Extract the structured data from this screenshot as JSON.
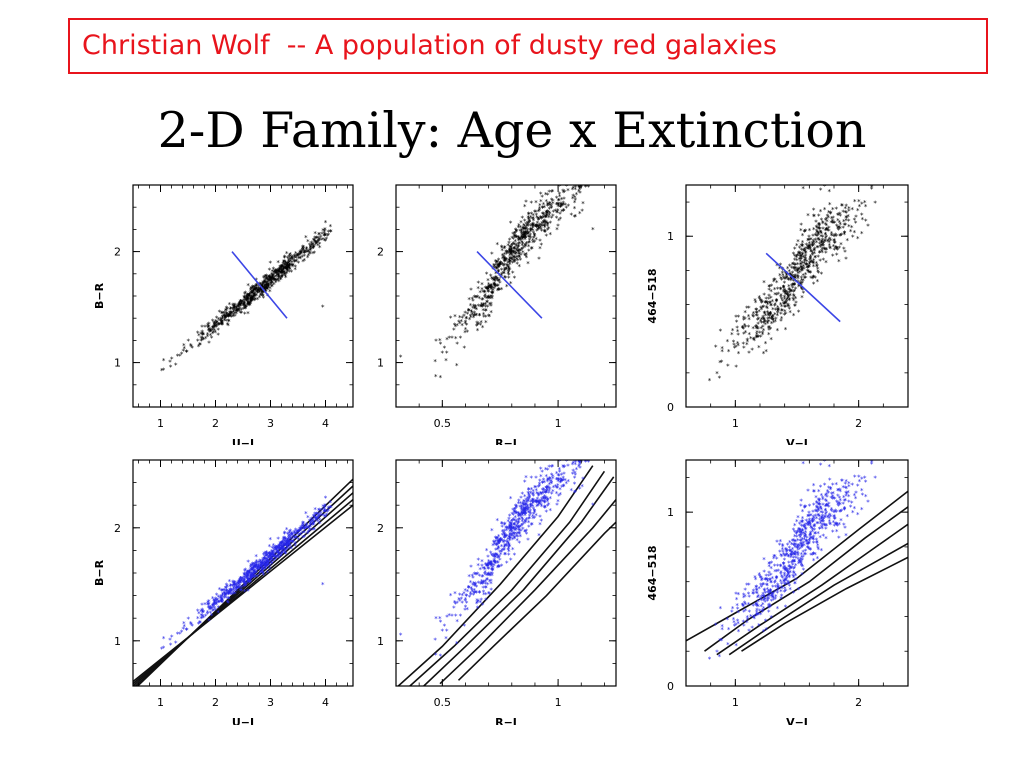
{
  "header": {
    "text": "Christian Wolf  -- A population of dusty red galaxies"
  },
  "slide": {
    "title": "2-D Family: Age x Extinction"
  },
  "colors": {
    "header_red": "#e8141c",
    "line_blue": "#3c46e6",
    "points_black": "#000000",
    "points_blue": "#2626e8"
  },
  "chart_data": [
    {
      "type": "scatter",
      "id": "UI-BR-black",
      "xlabel": "U−I",
      "ylabel": "B−R",
      "xlim": [
        0.5,
        4.5
      ],
      "ylim": [
        0.6,
        2.6
      ],
      "xticks": [
        1,
        2,
        3,
        4
      ],
      "yticks": [
        1,
        2
      ],
      "point_color": "#000000",
      "points": {
        "n": 700,
        "x_range": [
          1.0,
          4.1
        ],
        "relation": "y = 0.51 + 0.41*x",
        "x_center": 2.9,
        "x_spread": 0.65,
        "y_scatter": 0.04
      },
      "lines": [
        {
          "color": "#3c46e6",
          "points": [
            [
              2.3,
              2.0
            ],
            [
              3.3,
              1.4
            ]
          ]
        }
      ],
      "outliers": [
        [
          3.95,
          1.5
        ]
      ]
    },
    {
      "type": "scatter",
      "id": "RI-BR-black",
      "xlabel": "R−I",
      "ylabel": "B−R",
      "xlim": [
        0.3,
        1.25
      ],
      "ylim": [
        0.6,
        2.6
      ],
      "xticks": [
        0.5,
        1
      ],
      "yticks": [
        1,
        2
      ],
      "point_color": "#000000",
      "points": {
        "n": 700,
        "x_range": [
          0.38,
          1.2
        ],
        "relation": "y = 0.0 + 2.3*x",
        "x_center": 0.82,
        "x_spread": 0.14,
        "y_scatter": 0.1
      },
      "lines": [
        {
          "color": "#3c46e6",
          "points": [
            [
              0.65,
              2.0
            ],
            [
              0.93,
              1.4
            ]
          ]
        }
      ],
      "outliers": [
        [
          0.32,
          1.05
        ],
        [
          1.15,
          2.2
        ]
      ]
    },
    {
      "type": "scatter",
      "id": "VI-464-black",
      "xlabel": "V−I",
      "ylabel": "464−518",
      "xlim": [
        0.6,
        2.4
      ],
      "ylim": [
        0.0,
        1.3
      ],
      "xticks": [
        1,
        2
      ],
      "yticks": [
        0,
        1
      ],
      "point_color": "#000000",
      "points": {
        "n": 700,
        "x_range": [
          0.75,
          2.15
        ],
        "relation": "y = -0.35 + 0.72*x",
        "x_center": 1.5,
        "x_spread": 0.26,
        "y_scatter": 0.09
      },
      "lines": [
        {
          "color": "#3c46e6",
          "points": [
            [
              1.25,
              0.9
            ],
            [
              1.85,
              0.5
            ]
          ]
        }
      ],
      "outliers": [
        [
          1.55,
          1.28
        ]
      ]
    },
    {
      "type": "scatter",
      "id": "UI-BR-blue",
      "xlabel": "U−I",
      "ylabel": "B−R",
      "xlim": [
        0.5,
        4.5
      ],
      "ylim": [
        0.6,
        2.6
      ],
      "xticks": [
        1,
        2,
        3,
        4
      ],
      "yticks": [
        1,
        2
      ],
      "point_color": "#2626e8",
      "points": {
        "n": 700,
        "x_range": [
          1.0,
          4.1
        ],
        "relation": "y = 0.51 + 0.41*x",
        "x_center": 2.9,
        "x_spread": 0.65,
        "y_scatter": 0.04
      },
      "tracks": [
        [
          [
            0.5,
            0.56
          ],
          [
            4.5,
            2.43
          ]
        ],
        [
          [
            0.5,
            0.58
          ],
          [
            4.5,
            2.37
          ]
        ],
        [
          [
            0.5,
            0.6
          ],
          [
            4.5,
            2.31
          ]
        ],
        [
          [
            0.5,
            0.62
          ],
          [
            4.5,
            2.25
          ]
        ],
        [
          [
            0.5,
            0.64
          ],
          [
            4.5,
            2.2
          ]
        ]
      ],
      "outliers": [
        [
          3.95,
          1.5
        ]
      ]
    },
    {
      "type": "scatter",
      "id": "RI-BR-blue",
      "xlabel": "R−I",
      "ylabel": "B−R",
      "xlim": [
        0.3,
        1.25
      ],
      "ylim": [
        0.6,
        2.6
      ],
      "xticks": [
        0.5,
        1
      ],
      "yticks": [
        1,
        2
      ],
      "point_color": "#2626e8",
      "points": {
        "n": 700,
        "x_range": [
          0.38,
          1.2
        ],
        "relation": "y = 0.0 + 2.3*x",
        "x_center": 0.82,
        "x_spread": 0.14,
        "y_scatter": 0.1
      },
      "tracks": [
        [
          [
            0.31,
            0.6
          ],
          [
            0.5,
            0.95
          ],
          [
            0.75,
            1.5
          ],
          [
            1.0,
            2.1
          ],
          [
            1.15,
            2.55
          ]
        ],
        [
          [
            0.36,
            0.6
          ],
          [
            0.55,
            0.95
          ],
          [
            0.8,
            1.45
          ],
          [
            1.05,
            2.05
          ],
          [
            1.2,
            2.5
          ]
        ],
        [
          [
            0.42,
            0.6
          ],
          [
            0.6,
            0.95
          ],
          [
            0.85,
            1.45
          ],
          [
            1.1,
            2.05
          ],
          [
            1.24,
            2.45
          ]
        ],
        [
          [
            0.49,
            0.62
          ],
          [
            0.66,
            0.95
          ],
          [
            0.9,
            1.45
          ],
          [
            1.15,
            2.0
          ],
          [
            1.25,
            2.25
          ]
        ],
        [
          [
            0.57,
            0.65
          ],
          [
            0.72,
            0.95
          ],
          [
            0.95,
            1.4
          ],
          [
            1.2,
            1.95
          ],
          [
            1.25,
            2.05
          ]
        ]
      ],
      "outliers": [
        [
          0.32,
          1.05
        ],
        [
          1.15,
          2.2
        ]
      ]
    },
    {
      "type": "scatter",
      "id": "VI-464-blue",
      "xlabel": "V−I",
      "ylabel": "464−518",
      "xlim": [
        0.6,
        2.4
      ],
      "ylim": [
        0.0,
        1.3
      ],
      "xticks": [
        1,
        2
      ],
      "yticks": [
        0,
        1
      ],
      "point_color": "#2626e8",
      "points": {
        "n": 700,
        "x_range": [
          0.75,
          2.15
        ],
        "relation": "y = -0.35 + 0.72*x",
        "x_center": 1.5,
        "x_spread": 0.26,
        "y_scatter": 0.09
      },
      "tracks": [
        [
          [
            0.6,
            0.26
          ],
          [
            1.0,
            0.42
          ],
          [
            1.5,
            0.62
          ],
          [
            2.0,
            0.9
          ],
          [
            2.4,
            1.12
          ]
        ],
        [
          [
            0.75,
            0.2
          ],
          [
            1.1,
            0.38
          ],
          [
            1.6,
            0.6
          ],
          [
            2.05,
            0.85
          ],
          [
            2.4,
            1.03
          ]
        ],
        [
          [
            0.85,
            0.18
          ],
          [
            1.2,
            0.35
          ],
          [
            1.7,
            0.58
          ],
          [
            2.1,
            0.78
          ],
          [
            2.4,
            0.93
          ]
        ],
        [
          [
            0.95,
            0.18
          ],
          [
            1.3,
            0.35
          ],
          [
            1.8,
            0.58
          ],
          [
            2.2,
            0.74
          ],
          [
            2.4,
            0.82
          ]
        ],
        [
          [
            1.05,
            0.2
          ],
          [
            1.4,
            0.36
          ],
          [
            1.9,
            0.56
          ],
          [
            2.4,
            0.74
          ]
        ]
      ],
      "outliers": [
        [
          1.55,
          1.28
        ]
      ]
    }
  ]
}
